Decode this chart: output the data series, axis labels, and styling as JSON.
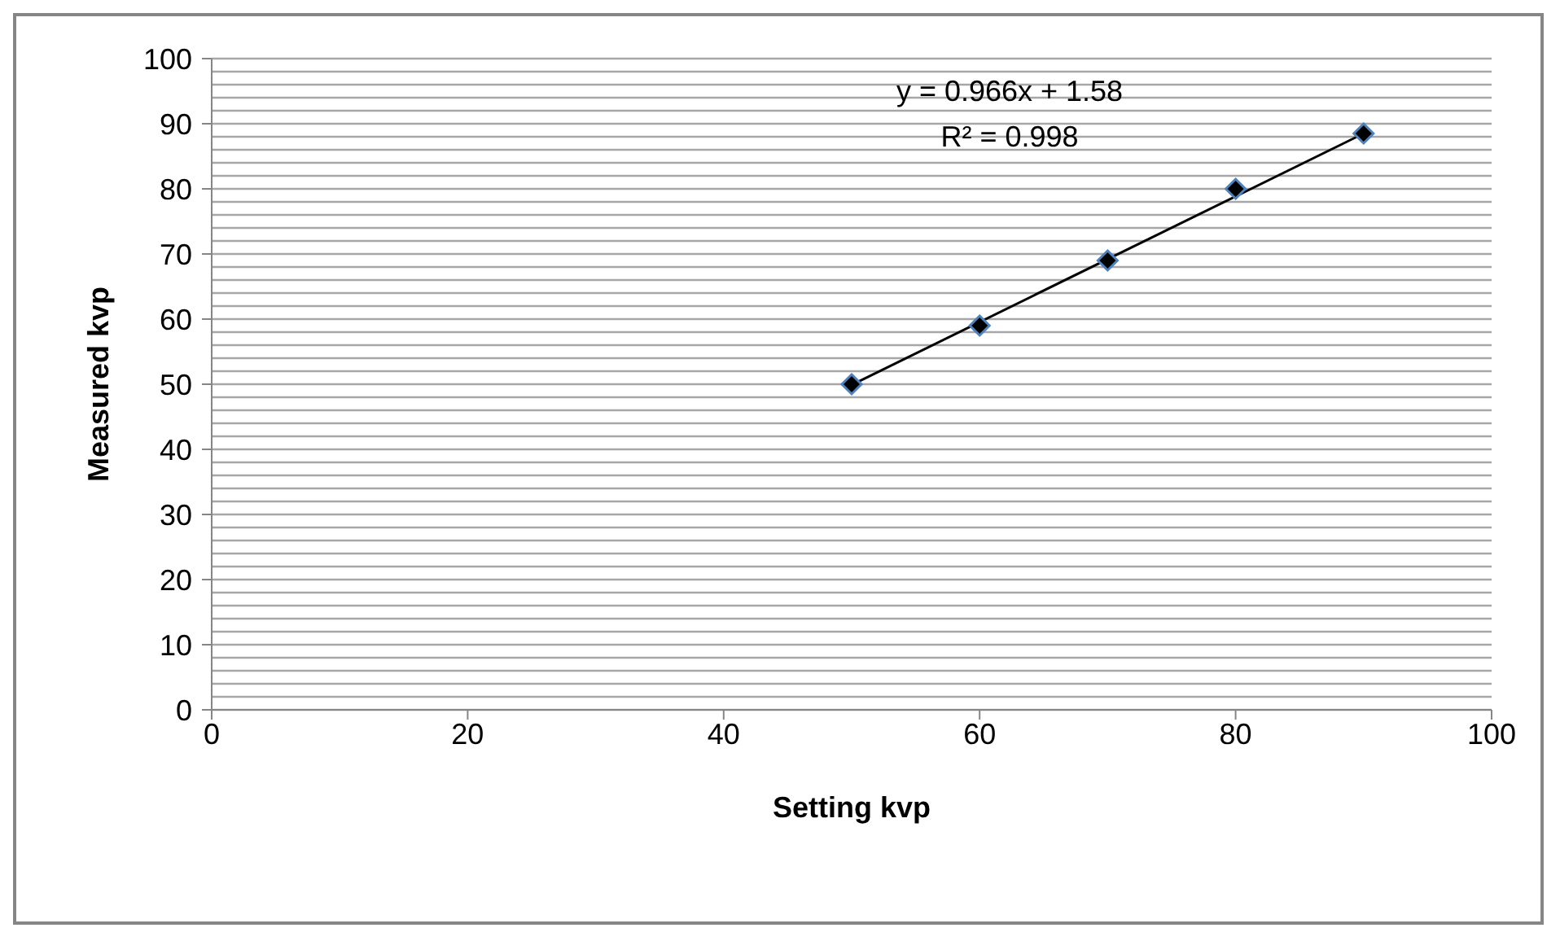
{
  "chart_data": {
    "type": "scatter",
    "xlabel": "Setting kvp",
    "ylabel": "Measured kvp",
    "x": [
      50,
      60,
      70,
      80,
      90
    ],
    "series": [
      {
        "color": "#000000",
        "marker": "diamond",
        "values": [
          50,
          59,
          69,
          80,
          88.5
        ]
      },
      {
        "type": "line",
        "color": "#000000",
        "marker": "none",
        "x": [
          50,
          90
        ],
        "values": [
          49.9,
          88.5
        ]
      }
    ],
    "annotations": [
      "y = 0.966x + 1.58",
      "R² = 0.998"
    ],
    "xlim": [
      0,
      100
    ],
    "xticks": [
      0,
      20,
      40,
      60,
      80,
      100
    ],
    "ylim": [
      0,
      100
    ],
    "yticks": [
      0,
      {
        "value": 2,
        "label": null
      },
      {
        "value": 4,
        "label": null
      },
      {
        "value": 6,
        "label": null
      },
      {
        "value": 8,
        "label": null
      },
      10,
      {
        "value": 12,
        "label": null
      },
      {
        "value": 14,
        "label": null
      },
      {
        "value": 16,
        "label": null
      },
      {
        "value": 18,
        "label": null
      },
      20,
      {
        "value": 22,
        "label": null
      },
      {
        "value": 24,
        "label": null
      },
      {
        "value": 26,
        "label": null
      },
      {
        "value": 28,
        "label": null
      },
      30,
      {
        "value": 32,
        "label": null
      },
      {
        "value": 34,
        "label": null
      },
      {
        "value": 36,
        "label": null
      },
      {
        "value": 38,
        "label": null
      },
      40,
      {
        "value": 42,
        "label": null
      },
      {
        "value": 44,
        "label": null
      },
      {
        "value": 46,
        "label": null
      },
      {
        "value": 48,
        "label": null
      },
      50,
      {
        "value": 52,
        "label": null
      },
      {
        "value": 54,
        "label": null
      },
      {
        "value": 56,
        "label": null
      },
      {
        "value": 58,
        "label": null
      },
      60,
      {
        "value": 62,
        "label": null
      },
      {
        "value": 64,
        "label": null
      },
      {
        "value": 66,
        "label": null
      },
      {
        "value": 68,
        "label": null
      },
      70,
      {
        "value": 72,
        "label": null
      },
      {
        "value": 74,
        "label": null
      },
      {
        "value": 76,
        "label": null
      },
      {
        "value": 78,
        "label": null
      },
      80,
      {
        "value": 82,
        "label": null
      },
      {
        "value": 84,
        "label": null
      },
      {
        "value": 86,
        "label": null
      },
      {
        "value": 88,
        "label": null
      },
      90,
      {
        "value": 92,
        "label": null
      },
      {
        "value": 94,
        "label": null
      },
      {
        "value": 96,
        "label": null
      },
      {
        "value": 98,
        "label": null
      },
      100
    ],
    "grid": "y",
    "legend": false
  }
}
